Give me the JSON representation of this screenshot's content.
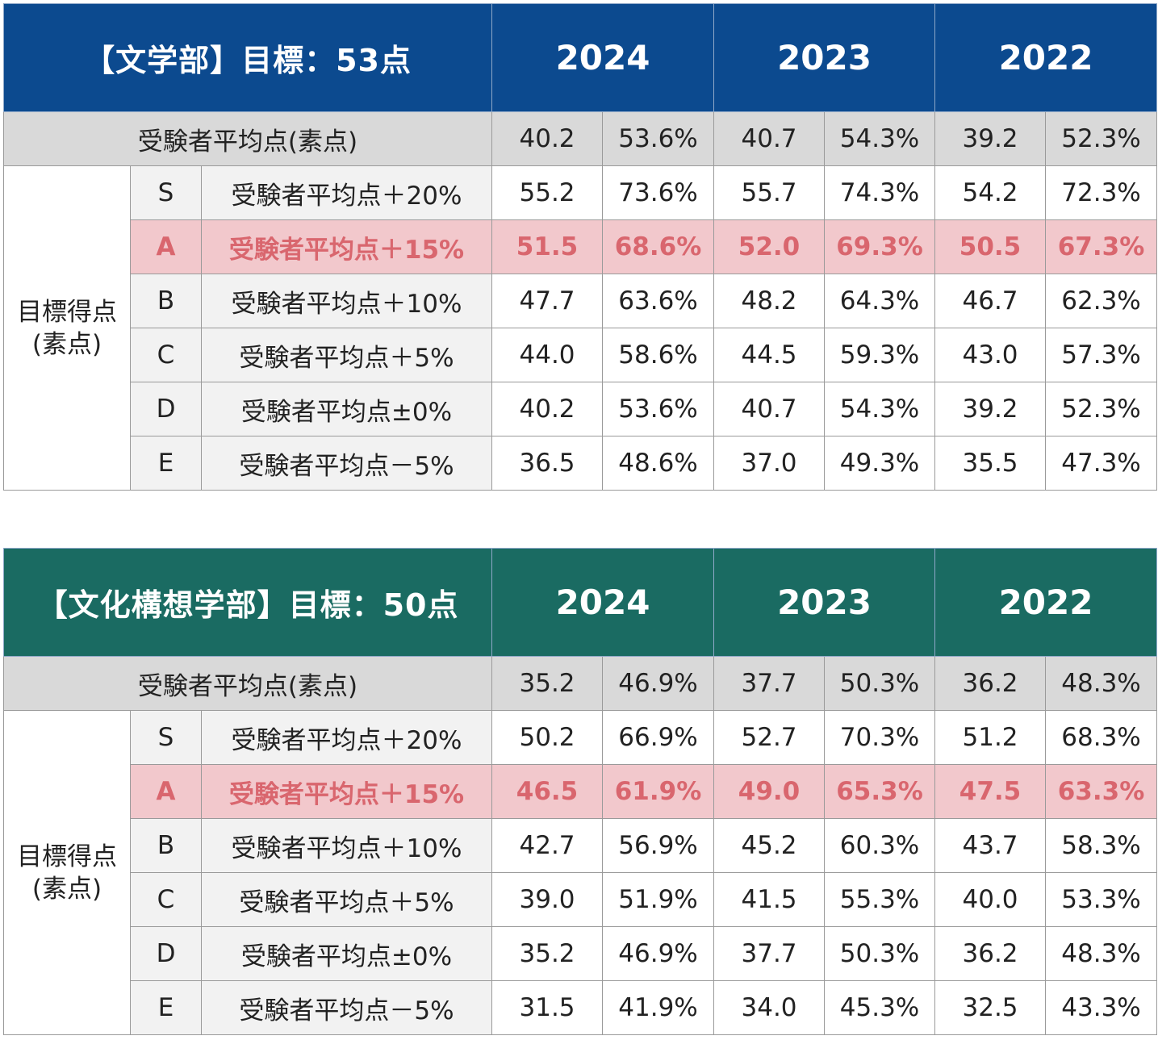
{
  "tables": [
    {
      "title": "【文学部】目標：53点",
      "header_color": "#0c4a8f",
      "years": [
        "2024",
        "2023",
        "2022"
      ],
      "avg_label": "受験者平均点(素点)",
      "avg": [
        "40.2",
        "53.6%",
        "40.7",
        "54.3%",
        "39.2",
        "52.3%"
      ],
      "side_label_1": "目標得点",
      "side_label_2": "(素点)",
      "rows": [
        {
          "grade": "S",
          "label": "受験者平均点＋20%",
          "values": [
            "55.2",
            "73.6%",
            "55.7",
            "74.3%",
            "54.2",
            "72.3%"
          ]
        },
        {
          "grade": "A",
          "label": "受験者平均点＋15%",
          "values": [
            "51.5",
            "68.6%",
            "52.0",
            "69.3%",
            "50.5",
            "67.3%"
          ]
        },
        {
          "grade": "B",
          "label": "受験者平均点＋10%",
          "values": [
            "47.7",
            "63.6%",
            "48.2",
            "64.3%",
            "46.7",
            "62.3%"
          ]
        },
        {
          "grade": "C",
          "label": "受験者平均点＋5%",
          "values": [
            "44.0",
            "58.6%",
            "44.5",
            "59.3%",
            "43.0",
            "57.3%"
          ]
        },
        {
          "grade": "D",
          "label": "受験者平均点±0%",
          "values": [
            "40.2",
            "53.6%",
            "40.7",
            "54.3%",
            "39.2",
            "52.3%"
          ]
        },
        {
          "grade": "E",
          "label": "受験者平均点－5%",
          "values": [
            "36.5",
            "48.6%",
            "37.0",
            "49.3%",
            "35.5",
            "47.3%"
          ]
        }
      ]
    },
    {
      "title": "【文化構想学部】目標：50点",
      "header_color": "#1a6b62",
      "years": [
        "2024",
        "2023",
        "2022"
      ],
      "avg_label": "受験者平均点(素点)",
      "avg": [
        "35.2",
        "46.9%",
        "37.7",
        "50.3%",
        "36.2",
        "48.3%"
      ],
      "side_label_1": "目標得点",
      "side_label_2": "(素点)",
      "rows": [
        {
          "grade": "S",
          "label": "受験者平均点＋20%",
          "values": [
            "50.2",
            "66.9%",
            "52.7",
            "70.3%",
            "51.2",
            "68.3%"
          ]
        },
        {
          "grade": "A",
          "label": "受験者平均点＋15%",
          "values": [
            "46.5",
            "61.9%",
            "49.0",
            "65.3%",
            "47.5",
            "63.3%"
          ]
        },
        {
          "grade": "B",
          "label": "受験者平均点＋10%",
          "values": [
            "42.7",
            "56.9%",
            "45.2",
            "60.3%",
            "43.7",
            "58.3%"
          ]
        },
        {
          "grade": "C",
          "label": "受験者平均点＋5%",
          "values": [
            "39.0",
            "51.9%",
            "41.5",
            "55.3%",
            "40.0",
            "53.3%"
          ]
        },
        {
          "grade": "D",
          "label": "受験者平均点±0%",
          "values": [
            "35.2",
            "46.9%",
            "37.7",
            "50.3%",
            "36.2",
            "48.3%"
          ]
        },
        {
          "grade": "E",
          "label": "受験者平均点－5%",
          "values": [
            "31.5",
            "41.9%",
            "34.0",
            "45.3%",
            "32.5",
            "43.3%"
          ]
        }
      ]
    }
  ],
  "highlight_grade": "A",
  "highlight_bg": "#f2c8cc",
  "highlight_text": "#d9666e",
  "chart_data": [
    {
      "type": "table",
      "title": "【文学部】目標：53点",
      "columns": [
        "2024",
        "2023",
        "2022"
      ],
      "avg_label": "受験者平均点(素点)",
      "avg": [
        [
          40.2,
          53.6
        ],
        [
          40.7,
          54.3
        ],
        [
          39.2,
          52.3
        ]
      ],
      "rows": [
        {
          "grade": "S",
          "label": "受験者平均点＋20%",
          "score": [
            55.2,
            55.7,
            54.2
          ],
          "percent": [
            73.6,
            74.3,
            72.3
          ]
        },
        {
          "grade": "A",
          "label": "受験者平均点＋15%",
          "score": [
            51.5,
            52.0,
            50.5
          ],
          "percent": [
            68.6,
            69.3,
            67.3
          ]
        },
        {
          "grade": "B",
          "label": "受験者平均点＋10%",
          "score": [
            47.7,
            48.2,
            46.7
          ],
          "percent": [
            63.6,
            64.3,
            62.3
          ]
        },
        {
          "grade": "C",
          "label": "受験者平均点＋5%",
          "score": [
            44.0,
            44.5,
            43.0
          ],
          "percent": [
            58.6,
            59.3,
            57.3
          ]
        },
        {
          "grade": "D",
          "label": "受験者平均点±0%",
          "score": [
            40.2,
            40.7,
            39.2
          ],
          "percent": [
            53.6,
            54.3,
            52.3
          ]
        },
        {
          "grade": "E",
          "label": "受験者平均点－5%",
          "score": [
            36.5,
            37.0,
            35.5
          ],
          "percent": [
            48.6,
            49.3,
            47.3
          ]
        }
      ]
    },
    {
      "type": "table",
      "title": "【文化構想学部】目標：50点",
      "columns": [
        "2024",
        "2023",
        "2022"
      ],
      "avg_label": "受験者平均点(素点)",
      "avg": [
        [
          35.2,
          46.9
        ],
        [
          37.7,
          50.3
        ],
        [
          36.2,
          48.3
        ]
      ],
      "rows": [
        {
          "grade": "S",
          "label": "受験者平均点＋20%",
          "score": [
            50.2,
            52.7,
            51.2
          ],
          "percent": [
            66.9,
            70.3,
            68.3
          ]
        },
        {
          "grade": "A",
          "label": "受験者平均点＋15%",
          "score": [
            46.5,
            49.0,
            47.5
          ],
          "percent": [
            61.9,
            65.3,
            63.3
          ]
        },
        {
          "grade": "B",
          "label": "受験者平均点＋10%",
          "score": [
            42.7,
            45.2,
            43.7
          ],
          "percent": [
            56.9,
            60.3,
            58.3
          ]
        },
        {
          "grade": "C",
          "label": "受験者平均点＋5%",
          "score": [
            39.0,
            41.5,
            40.0
          ],
          "percent": [
            51.9,
            55.3,
            53.3
          ]
        },
        {
          "grade": "D",
          "label": "受験者平均点±0%",
          "score": [
            35.2,
            37.7,
            36.2
          ],
          "percent": [
            46.9,
            50.3,
            48.3
          ]
        },
        {
          "grade": "E",
          "label": "受験者平均点－5%",
          "score": [
            31.5,
            34.0,
            32.5
          ],
          "percent": [
            41.9,
            45.3,
            43.3
          ]
        }
      ]
    }
  ]
}
